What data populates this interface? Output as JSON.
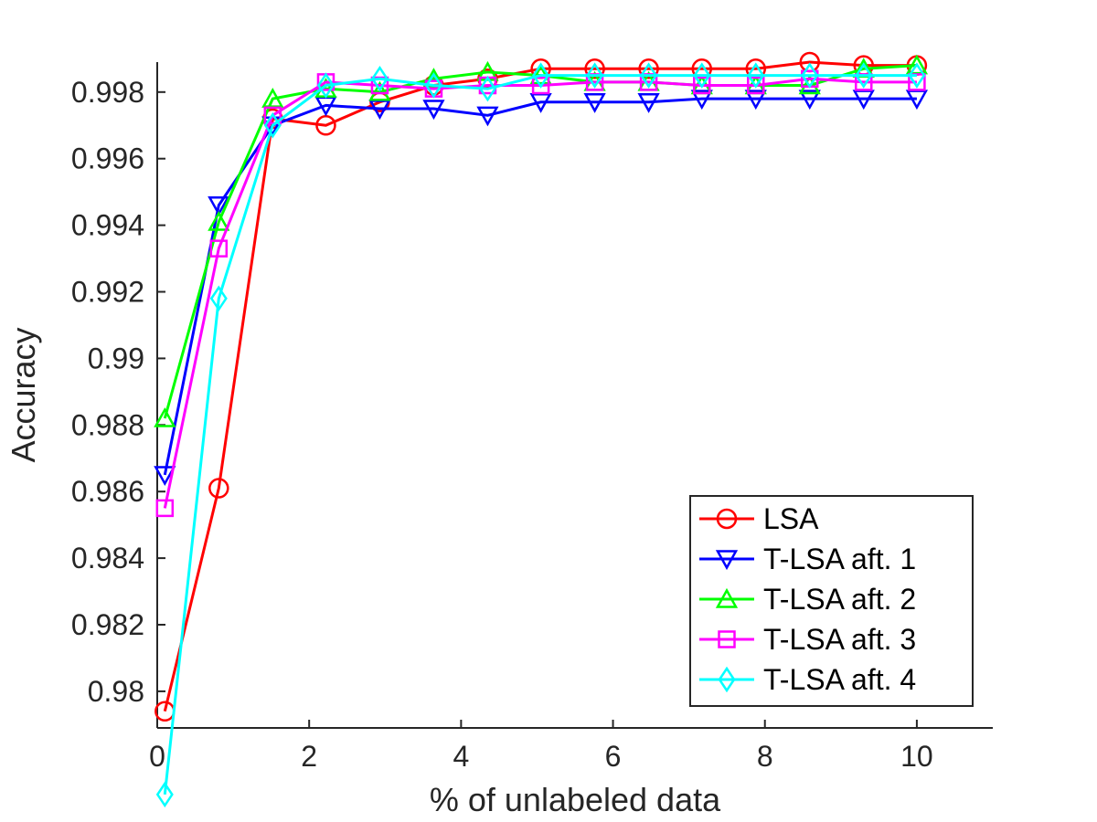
{
  "chart_data": {
    "type": "line",
    "title": "",
    "xlabel": "% of unlabeled data",
    "ylabel": "Accuracy",
    "xlim": [
      0,
      11
    ],
    "ylim": [
      0.9789,
      0.9989
    ],
    "xticks": [
      0,
      2,
      4,
      6,
      8,
      10
    ],
    "xtick_labels": [
      "0",
      "2",
      "4",
      "6",
      "8",
      "10"
    ],
    "yticks": [
      0.98,
      0.982,
      0.984,
      0.986,
      0.988,
      0.99,
      0.992,
      0.994,
      0.996,
      0.998
    ],
    "ytick_labels": [
      "0.98",
      "0.982",
      "0.984",
      "0.986",
      "0.988",
      "0.99",
      "0.992",
      "0.994",
      "0.996",
      "0.998"
    ],
    "grid": false,
    "legend_position": "bottom-right",
    "x": [
      0.1,
      0.81,
      1.52,
      2.22,
      2.93,
      3.64,
      4.35,
      5.05,
      5.76,
      6.47,
      7.17,
      7.88,
      8.59,
      9.3,
      10.0
    ],
    "series": [
      {
        "name": "LSA",
        "color": "#ff0000",
        "marker": "circle",
        "values": [
          0.9794,
          0.9861,
          0.9972,
          0.997,
          0.9977,
          0.9982,
          0.9984,
          0.9987,
          0.9987,
          0.9987,
          0.9987,
          0.9987,
          0.9989,
          0.9988,
          0.9988
        ]
      },
      {
        "name": "T-LSA aft. 1",
        "color": "#0000ff",
        "marker": "triangle-down",
        "values": [
          0.9865,
          0.9946,
          0.997,
          0.9976,
          0.9975,
          0.9975,
          0.9973,
          0.9977,
          0.9977,
          0.9977,
          0.9978,
          0.9978,
          0.9978,
          0.9978,
          0.9978
        ]
      },
      {
        "name": "T-LSA aft. 2",
        "color": "#00ff00",
        "marker": "triangle-up",
        "values": [
          0.9882,
          0.9941,
          0.9978,
          0.9981,
          0.998,
          0.9984,
          0.9986,
          0.9985,
          0.9983,
          0.9983,
          0.9982,
          0.9982,
          0.9982,
          0.9987,
          0.9988
        ]
      },
      {
        "name": "T-LSA aft. 3",
        "color": "#ff00ff",
        "marker": "square",
        "values": [
          0.9855,
          0.9933,
          0.9973,
          0.9983,
          0.9982,
          0.9981,
          0.9982,
          0.9982,
          0.9983,
          0.9983,
          0.9982,
          0.9982,
          0.9984,
          0.9983,
          0.9983
        ]
      },
      {
        "name": "T-LSA aft. 4",
        "color": "#00ffff",
        "marker": "diamond",
        "values": [
          0.9769,
          0.9918,
          0.997,
          0.9982,
          0.9984,
          0.9982,
          0.9981,
          0.9985,
          0.9985,
          0.9985,
          0.9985,
          0.9985,
          0.9985,
          0.9985,
          0.9985
        ]
      }
    ]
  }
}
